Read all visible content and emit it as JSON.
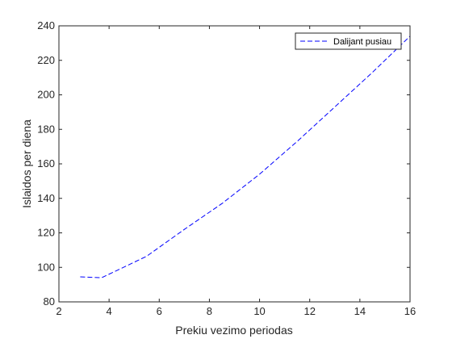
{
  "chart_data": {
    "type": "line",
    "title": "",
    "xlabel": "Prekiu vezimo periodas",
    "ylabel": "Islaidos per diena",
    "xlim": [
      2,
      16
    ],
    "ylim": [
      80,
      240
    ],
    "xticks": [
      2,
      4,
      6,
      8,
      10,
      12,
      14,
      16
    ],
    "yticks": [
      80,
      100,
      120,
      140,
      160,
      180,
      200,
      220,
      240
    ],
    "grid": false,
    "legend_position": "top-right",
    "series": [
      {
        "name": "Dalijant pusiau",
        "color": "#0000ff",
        "line_style": "dashed",
        "x": [
          2.85,
          3.7,
          4.5,
          5.5,
          7,
          8.5,
          10,
          11.5,
          13,
          14.5,
          16
        ],
        "y": [
          94.5,
          94,
          99.5,
          106.5,
          122,
          137,
          154,
          173,
          193,
          213,
          234
        ]
      }
    ]
  }
}
